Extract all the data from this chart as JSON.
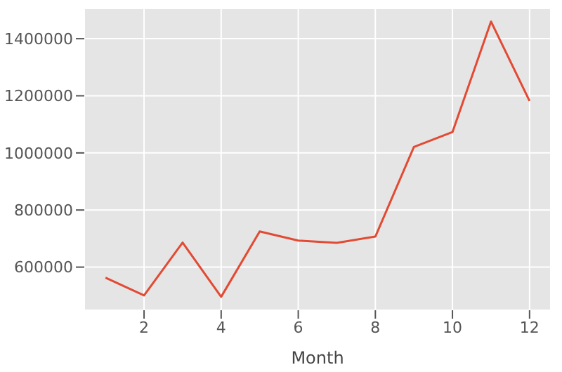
{
  "chart_data": {
    "type": "line",
    "xlabel": "Month",
    "x": [
      1,
      2,
      3,
      4,
      5,
      6,
      7,
      8,
      9,
      10,
      11,
      12
    ],
    "series": [
      {
        "color": "#e24a33",
        "values": [
          563000,
          501000,
          686000,
          496000,
          725000,
          693000,
          685000,
          707000,
          1021000,
          1073000,
          1460000,
          1182000
        ]
      }
    ],
    "xlim": [
      0.45,
      12.55
    ],
    "xticks": [
      2,
      4,
      6,
      8,
      10,
      12
    ],
    "ylim": [
      449000,
      1506000
    ],
    "yticks": [
      600000,
      800000,
      1000000,
      1200000,
      1400000
    ],
    "grid": true,
    "legend": false,
    "marker": "none",
    "line_style": "solid"
  }
}
